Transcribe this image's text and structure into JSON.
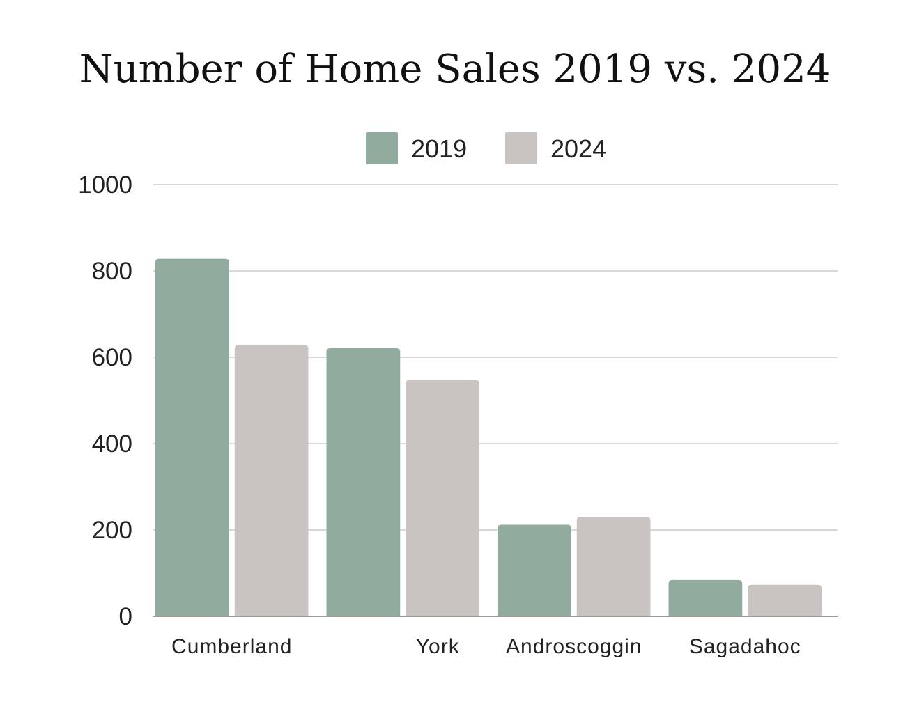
{
  "chart_data": {
    "type": "bar",
    "title": "Number of Home Sales 2019 vs. 2024",
    "xlabel": "",
    "ylabel": "",
    "categories": [
      "Cumberland",
      "York",
      "Androscoggin",
      "Sagadahoc"
    ],
    "series": [
      {
        "name": "2019",
        "values": [
          828,
          621,
          212,
          84
        ],
        "color": "#91ab9f"
      },
      {
        "name": "2024",
        "values": [
          628,
          547,
          230,
          73
        ],
        "color": "#c9c4c1"
      }
    ],
    "ylim": [
      0,
      1000
    ],
    "yticks": [
      0,
      200,
      400,
      600,
      800,
      1000
    ],
    "ytick_labels": [
      "0",
      "200",
      "400",
      "600",
      "800",
      "1000"
    ],
    "grid": true,
    "legend_position": "top-center"
  }
}
